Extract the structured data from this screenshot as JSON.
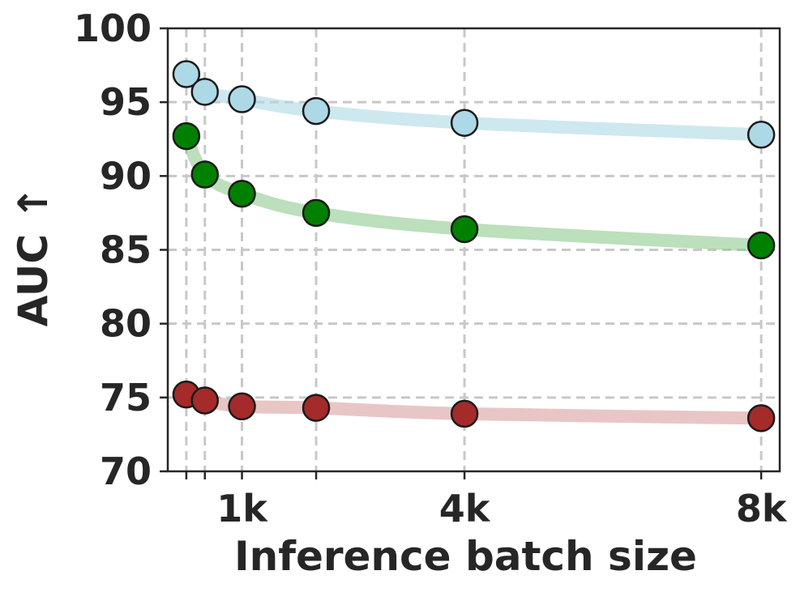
{
  "chart_data": {
    "type": "line",
    "xlabel": "Inference batch size",
    "ylabel": "AUC ↑",
    "ylim": [
      70,
      100
    ],
    "yticks": [
      70,
      75,
      80,
      85,
      90,
      95,
      100
    ],
    "xlim": [
      0,
      8448
    ],
    "xticks": [
      {
        "value": 256,
        "label": ""
      },
      {
        "value": 512,
        "label": ""
      },
      {
        "value": 1024,
        "label": "1k"
      },
      {
        "value": 2048,
        "label": ""
      },
      {
        "value": 4096,
        "label": "4k"
      },
      {
        "value": 8192,
        "label": "8k"
      }
    ],
    "grid": true,
    "grid_style": "dashed",
    "x": [
      256,
      512,
      1024,
      2048,
      4096,
      8192
    ],
    "series": [
      {
        "values": [
          96.9,
          95.7,
          95.2,
          94.4,
          93.6,
          92.8
        ],
        "line_color": "#add8e6",
        "marker_color": "#add8e6"
      },
      {
        "values": [
          92.7,
          90.1,
          88.8,
          87.5,
          86.4,
          85.3
        ],
        "line_color": "#90c990",
        "marker_color": "#008000"
      },
      {
        "values": [
          75.2,
          74.8,
          74.4,
          74.3,
          73.9,
          73.6
        ],
        "line_color": "#d9a0a0",
        "marker_color": "#a52a2a"
      }
    ]
  }
}
